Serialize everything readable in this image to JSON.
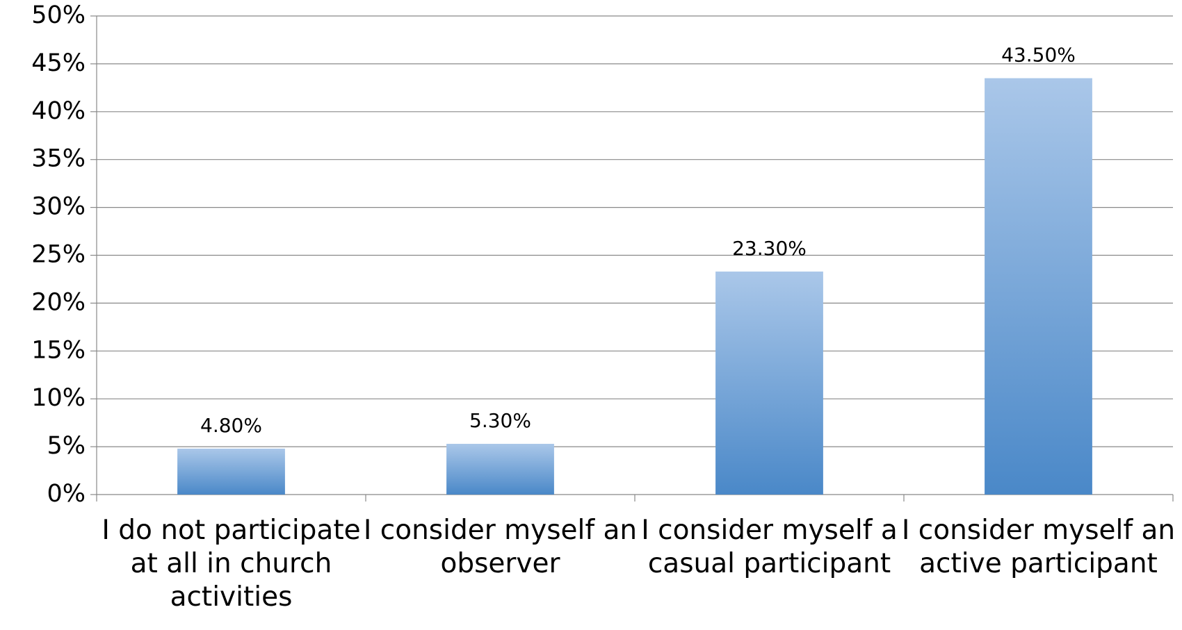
{
  "chart_data": {
    "type": "bar",
    "categories": [
      "I do not participate at all in church activities",
      "I consider myself an observer",
      "I consider myself a casual participant",
      "I consider myself an active participant"
    ],
    "values": [
      4.8,
      5.3,
      23.3,
      43.5
    ],
    "value_labels": [
      "4.80%",
      "5.30%",
      "23.30%",
      "43.50%"
    ],
    "color": "#4a88c8",
    "ylim": [
      0,
      50
    ],
    "yticks": [
      {
        "value": 0,
        "label": "0%"
      },
      {
        "value": 5,
        "label": "5%"
      },
      {
        "value": 10,
        "label": "10%"
      },
      {
        "value": 15,
        "label": "15%"
      },
      {
        "value": 20,
        "label": "20%"
      },
      {
        "value": 25,
        "label": "25%"
      },
      {
        "value": 30,
        "label": "30%"
      },
      {
        "value": 35,
        "label": "35%"
      },
      {
        "value": 40,
        "label": "40%"
      },
      {
        "value": 45,
        "label": "45%"
      },
      {
        "value": 50,
        "label": "50%"
      }
    ],
    "grid": true
  }
}
